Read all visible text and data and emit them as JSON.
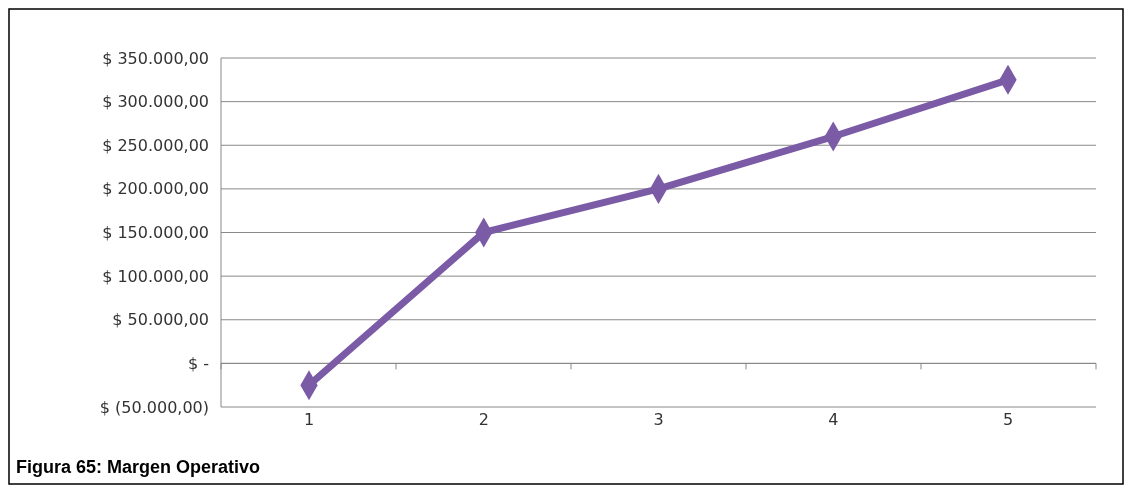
{
  "chart_data": {
    "type": "line",
    "title": "Figura 65: Margen Operativo",
    "categories": [
      "1",
      "2",
      "3",
      "4",
      "5"
    ],
    "series": [
      {
        "color": "#7b5aa6",
        "values": [
          -25000,
          150000,
          200000,
          260000,
          325000
        ]
      }
    ],
    "ylim": [
      -50000,
      350000
    ],
    "yticks": [
      {
        "value": -50000,
        "label": "$ (50.000,00)"
      },
      {
        "value": 0,
        "label": "$ -"
      },
      {
        "value": 50000,
        "label": "$ 50.000,00"
      },
      {
        "value": 100000,
        "label": "$ 100.000,00"
      },
      {
        "value": 150000,
        "label": "$ 150.000,00"
      },
      {
        "value": 200000,
        "label": "$ 200.000,00"
      },
      {
        "value": 250000,
        "label": "$ 250.000,00"
      },
      {
        "value": 300000,
        "label": "$ 300.000,00"
      },
      {
        "value": 350000,
        "label": "$ 350.000,00"
      }
    ],
    "grid": "y",
    "marker": "diamond",
    "line_style": "solid"
  }
}
